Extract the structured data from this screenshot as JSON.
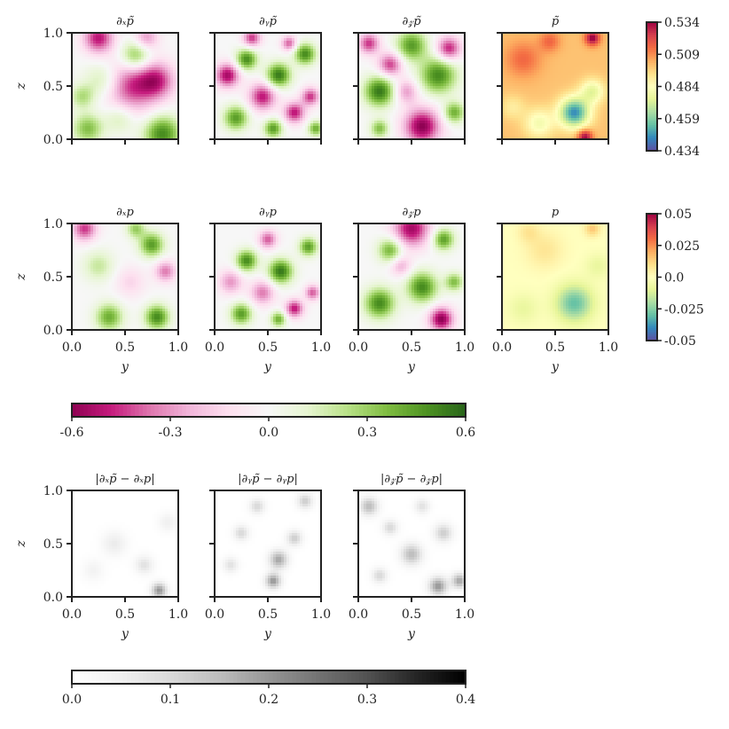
{
  "figure": {
    "rows": [
      {
        "panels": [
          {
            "title": "∂ₓp̃",
            "field": "dx_approx",
            "cmap": "PiYG"
          },
          {
            "title": "∂ᵧp̃",
            "field": "dy_approx",
            "cmap": "PiYG"
          },
          {
            "title": "∂𝓏p̃",
            "field": "dz_approx",
            "cmap": "PiYG"
          },
          {
            "title": "p̃",
            "field": "p_approx",
            "cmap": "Spectral"
          }
        ],
        "show_ylabel": true,
        "show_xticklabels": false
      },
      {
        "panels": [
          {
            "title": "∂ₓp",
            "field": "dx_true",
            "cmap": "PiYG"
          },
          {
            "title": "∂ᵧp",
            "field": "dy_true",
            "cmap": "PiYG"
          },
          {
            "title": "∂𝓏p",
            "field": "dz_true",
            "cmap": "PiYG"
          },
          {
            "title": "p",
            "field": "p_true",
            "cmap": "Spectral"
          }
        ],
        "show_ylabel": true,
        "show_xticklabels": true
      },
      {
        "panels": [
          {
            "title": "|∂ₓp̃ − ∂ₓp|",
            "field": "err_x",
            "cmap": "Greys"
          },
          {
            "title": "|∂ᵧp̃ − ∂ᵧp|",
            "field": "err_y",
            "cmap": "Greys"
          },
          {
            "title": "|∂𝓏p̃ − ∂𝓏p|",
            "field": "err_z",
            "cmap": "Greys"
          }
        ],
        "show_ylabel": true,
        "show_xticklabels": true
      }
    ]
  },
  "chart_data": {
    "type": "heatmap",
    "xlabel": "y",
    "ylabel": "z",
    "xlim": [
      0.0,
      1.0
    ],
    "ylim": [
      0.0,
      1.0
    ],
    "x_ticks": [
      "0.0",
      "0.5",
      "1.0"
    ],
    "y_ticks": [
      "0.0",
      "0.5",
      "1.0"
    ],
    "colorbars": [
      {
        "name": "p-approx-scale",
        "cmap": "Spectral",
        "range": [
          0.434,
          0.534
        ],
        "ticks": [
          "0.534",
          "0.509",
          "0.484",
          "0.459",
          "0.434"
        ]
      },
      {
        "name": "p-true-scale",
        "cmap": "Spectral",
        "range": [
          -0.05,
          0.05
        ],
        "ticks": [
          "0.05",
          "0.025",
          "0.0",
          "-0.025",
          "-0.05"
        ]
      },
      {
        "name": "gradient-scale",
        "cmap": "PiYG",
        "range": [
          -0.6,
          0.6
        ],
        "ticks": [
          "-0.6",
          "-0.3",
          "0.0",
          "0.3",
          "0.6"
        ]
      },
      {
        "name": "error-scale",
        "cmap": "Greys",
        "range": [
          0.0,
          0.4
        ],
        "ticks": [
          "0.0",
          "0.1",
          "0.2",
          "0.3",
          "0.4"
        ]
      }
    ],
    "fields": {
      "dx_approx": {
        "range": [
          -0.6,
          0.6
        ],
        "blobs": [
          [
            0.55,
            0.5,
            0.18,
            -0.45
          ],
          [
            0.25,
            0.95,
            0.1,
            -0.5
          ],
          [
            0.85,
            0.05,
            0.12,
            0.5
          ],
          [
            0.15,
            0.1,
            0.1,
            0.35
          ],
          [
            0.6,
            0.78,
            0.1,
            0.4
          ],
          [
            0.8,
            0.55,
            0.12,
            -0.4
          ],
          [
            0.3,
            0.55,
            0.12,
            0.25
          ],
          [
            0.7,
            0.95,
            0.08,
            -0.3
          ],
          [
            0.1,
            0.4,
            0.08,
            0.25
          ],
          [
            0.45,
            0.2,
            0.1,
            0.2
          ]
        ]
      },
      "dy_approx": {
        "range": [
          -0.6,
          0.6
        ],
        "blobs": [
          [
            0.12,
            0.6,
            0.08,
            -0.55
          ],
          [
            0.3,
            0.75,
            0.07,
            0.5
          ],
          [
            0.45,
            0.4,
            0.09,
            -0.5
          ],
          [
            0.6,
            0.6,
            0.08,
            0.55
          ],
          [
            0.75,
            0.25,
            0.07,
            -0.5
          ],
          [
            0.85,
            0.8,
            0.07,
            0.5
          ],
          [
            0.2,
            0.2,
            0.08,
            0.45
          ],
          [
            0.55,
            0.1,
            0.06,
            0.45
          ],
          [
            0.9,
            0.4,
            0.06,
            -0.45
          ],
          [
            0.35,
            0.95,
            0.06,
            -0.45
          ],
          [
            0.7,
            0.9,
            0.05,
            -0.4
          ],
          [
            0.95,
            0.1,
            0.05,
            0.4
          ]
        ]
      },
      "dz_approx": {
        "range": [
          -0.6,
          0.6
        ],
        "blobs": [
          [
            0.6,
            0.12,
            0.12,
            -0.6
          ],
          [
            0.2,
            0.45,
            0.1,
            0.55
          ],
          [
            0.75,
            0.6,
            0.12,
            0.5
          ],
          [
            0.5,
            0.88,
            0.1,
            0.45
          ],
          [
            0.3,
            0.7,
            0.08,
            -0.45
          ],
          [
            0.85,
            0.85,
            0.08,
            -0.5
          ],
          [
            0.1,
            0.9,
            0.07,
            -0.45
          ],
          [
            0.45,
            0.45,
            0.08,
            -0.3
          ],
          [
            0.9,
            0.25,
            0.07,
            0.4
          ],
          [
            0.2,
            0.1,
            0.06,
            0.35
          ]
        ]
      },
      "p_approx": {
        "range": [
          0.434,
          0.534
        ],
        "base": 0.5,
        "blobs": [
          [
            0.68,
            0.25,
            0.1,
            -0.055
          ],
          [
            0.85,
            0.45,
            0.08,
            -0.025
          ],
          [
            0.35,
            0.15,
            0.1,
            -0.02
          ],
          [
            0.2,
            0.75,
            0.12,
            0.015
          ],
          [
            0.85,
            0.95,
            0.05,
            0.035
          ],
          [
            0.78,
            0.02,
            0.05,
            0.035
          ],
          [
            0.45,
            0.92,
            0.07,
            0.015
          ],
          [
            0.1,
            0.3,
            0.08,
            -0.01
          ]
        ]
      },
      "dx_true": {
        "range": [
          -0.6,
          0.6
        ],
        "blobs": [
          [
            0.12,
            0.95,
            0.08,
            -0.45
          ],
          [
            0.75,
            0.8,
            0.08,
            0.45
          ],
          [
            0.8,
            0.12,
            0.08,
            0.5
          ],
          [
            0.35,
            0.12,
            0.09,
            0.4
          ],
          [
            0.55,
            0.45,
            0.1,
            -0.15
          ],
          [
            0.88,
            0.55,
            0.07,
            -0.35
          ],
          [
            0.25,
            0.6,
            0.1,
            0.2
          ],
          [
            0.6,
            0.95,
            0.06,
            0.3
          ]
        ]
      },
      "dy_true": {
        "range": [
          -0.6,
          0.6
        ],
        "blobs": [
          [
            0.15,
            0.45,
            0.08,
            -0.3
          ],
          [
            0.3,
            0.65,
            0.07,
            0.5
          ],
          [
            0.45,
            0.35,
            0.08,
            -0.35
          ],
          [
            0.62,
            0.55,
            0.08,
            0.55
          ],
          [
            0.75,
            0.2,
            0.06,
            -0.5
          ],
          [
            0.88,
            0.78,
            0.06,
            0.45
          ],
          [
            0.25,
            0.15,
            0.07,
            0.45
          ],
          [
            0.5,
            0.85,
            0.06,
            -0.4
          ],
          [
            0.92,
            0.35,
            0.05,
            -0.4
          ],
          [
            0.6,
            0.1,
            0.05,
            0.4
          ]
        ]
      },
      "dz_true": {
        "range": [
          -0.6,
          0.6
        ],
        "blobs": [
          [
            0.78,
            0.1,
            0.08,
            -0.6
          ],
          [
            0.5,
            0.95,
            0.12,
            -0.55
          ],
          [
            0.2,
            0.25,
            0.1,
            0.5
          ],
          [
            0.6,
            0.4,
            0.1,
            0.5
          ],
          [
            0.3,
            0.75,
            0.08,
            0.4
          ],
          [
            0.8,
            0.85,
            0.07,
            0.45
          ],
          [
            0.4,
            0.6,
            0.07,
            -0.25
          ],
          [
            0.9,
            0.45,
            0.06,
            0.35
          ]
        ]
      },
      "p_true": {
        "range": [
          -0.05,
          0.05
        ],
        "base": 0.0,
        "blobs": [
          [
            0.68,
            0.25,
            0.12,
            -0.03
          ],
          [
            0.4,
            0.75,
            0.12,
            0.008
          ],
          [
            0.2,
            0.2,
            0.1,
            -0.008
          ],
          [
            0.85,
            0.95,
            0.05,
            0.015
          ],
          [
            0.9,
            0.6,
            0.08,
            -0.008
          ],
          [
            0.25,
            0.92,
            0.07,
            0.008
          ]
        ]
      },
      "err_x": {
        "range": [
          0.0,
          0.4
        ],
        "base": 0.0,
        "blobs": [
          [
            0.82,
            0.06,
            0.05,
            0.2
          ],
          [
            0.68,
            0.3,
            0.06,
            0.08
          ],
          [
            0.4,
            0.5,
            0.08,
            0.06
          ],
          [
            0.2,
            0.25,
            0.07,
            0.04
          ],
          [
            0.9,
            0.7,
            0.06,
            0.05
          ]
        ]
      },
      "err_y": {
        "range": [
          0.0,
          0.4
        ],
        "base": 0.0,
        "blobs": [
          [
            0.6,
            0.35,
            0.06,
            0.18
          ],
          [
            0.55,
            0.15,
            0.05,
            0.2
          ],
          [
            0.25,
            0.6,
            0.05,
            0.1
          ],
          [
            0.85,
            0.9,
            0.05,
            0.12
          ],
          [
            0.4,
            0.85,
            0.05,
            0.1
          ],
          [
            0.75,
            0.55,
            0.05,
            0.12
          ],
          [
            0.15,
            0.3,
            0.05,
            0.08
          ]
        ]
      },
      "err_z": {
        "range": [
          0.0,
          0.4
        ],
        "base": 0.0,
        "blobs": [
          [
            0.75,
            0.1,
            0.06,
            0.2
          ],
          [
            0.5,
            0.4,
            0.07,
            0.15
          ],
          [
            0.1,
            0.85,
            0.06,
            0.15
          ],
          [
            0.8,
            0.6,
            0.06,
            0.12
          ],
          [
            0.3,
            0.65,
            0.05,
            0.1
          ],
          [
            0.95,
            0.15,
            0.05,
            0.18
          ],
          [
            0.2,
            0.2,
            0.05,
            0.1
          ],
          [
            0.6,
            0.85,
            0.05,
            0.08
          ]
        ]
      }
    }
  }
}
